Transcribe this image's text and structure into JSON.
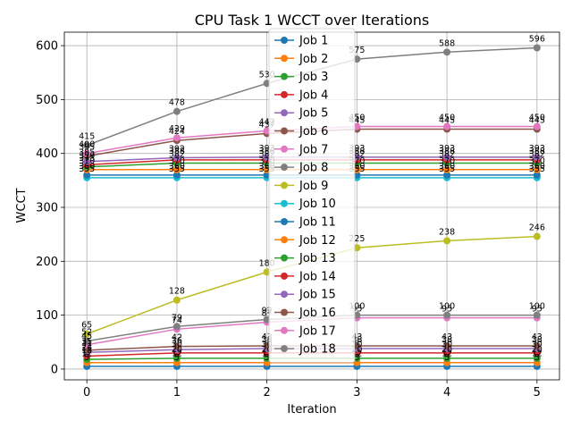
{
  "chart_data": {
    "type": "line",
    "title": "CPU Task 1 WCCT over Iterations",
    "xlabel": "Iteration",
    "ylabel": "WCCT",
    "x": [
      0,
      1,
      2,
      3,
      4,
      5
    ],
    "xlim": [
      -0.25,
      5.25
    ],
    "ylim": [
      -20,
      625
    ],
    "xticks": [
      "0",
      "1",
      "2",
      "3",
      "4",
      "5"
    ],
    "yticks": [
      "0",
      "100",
      "200",
      "300",
      "400",
      "500",
      "600"
    ],
    "grid": true,
    "legend_position": "center",
    "series": [
      {
        "name": "Job 1",
        "color": "#1f77b4",
        "values": [
          5,
          5,
          5,
          5,
          5,
          5
        ]
      },
      {
        "name": "Job 2",
        "color": "#ff7f0e",
        "values": [
          12,
          12,
          12,
          12,
          12,
          12
        ]
      },
      {
        "name": "Job 3",
        "color": "#2ca02c",
        "values": [
          18,
          20,
          20,
          20,
          20,
          20
        ]
      },
      {
        "name": "Job 4",
        "color": "#d62728",
        "values": [
          24,
          30,
          30,
          30,
          30,
          30
        ]
      },
      {
        "name": "Job 5",
        "color": "#9467bd",
        "values": [
          31,
          36,
          38,
          38,
          38,
          38
        ]
      },
      {
        "name": "Job 6",
        "color": "#8c564b",
        "values": [
          35,
          42,
          43,
          43,
          43,
          43
        ]
      },
      {
        "name": "Job 7",
        "color": "#e377c2",
        "values": [
          45,
          74,
          87,
          95,
          95,
          95
        ]
      },
      {
        "name": "Job 8",
        "color": "#7f7f7f",
        "values": [
          52,
          79,
          92,
          100,
          100,
          100
        ]
      },
      {
        "name": "Job 9",
        "color": "#bcbd22",
        "values": [
          65,
          128,
          180,
          225,
          238,
          246
        ]
      },
      {
        "name": "Job 10",
        "color": "#17becf",
        "values": [
          355,
          355,
          355,
          355,
          355,
          355
        ]
      },
      {
        "name": "Job 11",
        "color": "#1f77b4",
        "values": [
          360,
          360,
          360,
          360,
          360,
          360
        ]
      },
      {
        "name": "Job 12",
        "color": "#ff7f0e",
        "values": [
          370,
          370,
          370,
          370,
          370,
          370
        ]
      },
      {
        "name": "Job 13",
        "color": "#2ca02c",
        "values": [
          375,
          382,
          382,
          382,
          382,
          382
        ]
      },
      {
        "name": "Job 14",
        "color": "#d62728",
        "values": [
          379,
          388,
          388,
          388,
          388,
          388
        ]
      },
      {
        "name": "Job 15",
        "color": "#9467bd",
        "values": [
          385,
          392,
          393,
          393,
          393,
          393
        ]
      },
      {
        "name": "Job 16",
        "color": "#8c564b",
        "values": [
          395,
          424,
          437,
          445,
          445,
          445
        ]
      },
      {
        "name": "Job 17",
        "color": "#e377c2",
        "values": [
          400,
          429,
          442,
          450,
          450,
          450
        ]
      },
      {
        "name": "Job 18",
        "color": "#7f7f7f",
        "values": [
          415,
          478,
          530,
          575,
          588,
          596
        ]
      }
    ]
  }
}
